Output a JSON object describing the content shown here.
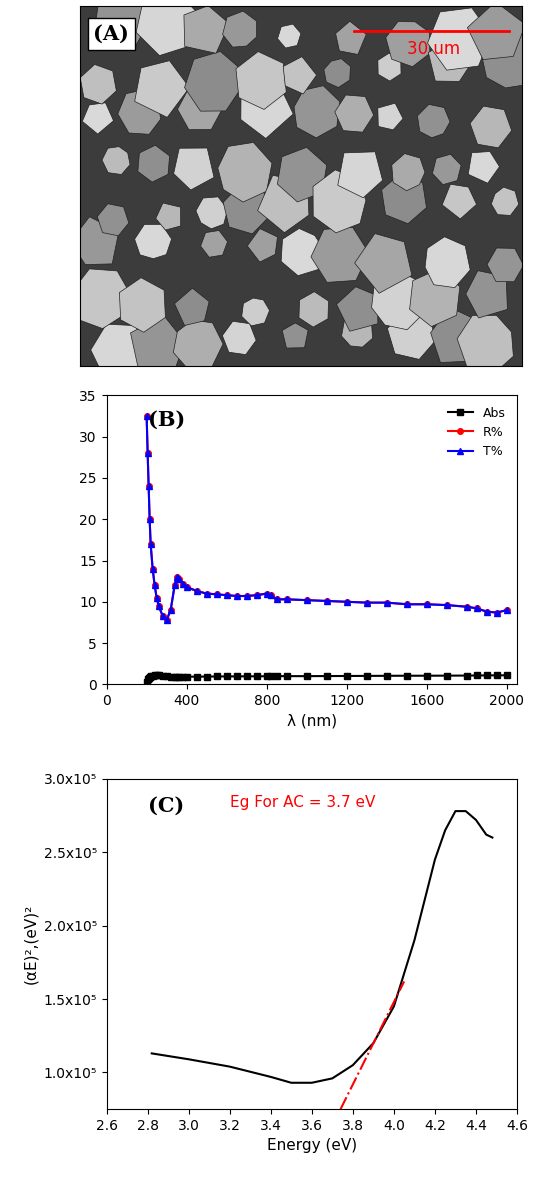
{
  "chart_data": [
    {
      "type": "image",
      "title": "(A)",
      "annotations": [
        "30 um"
      ],
      "tick_labels": false
    },
    {
      "type": "line",
      "title": "(B)",
      "x_label": "λ (nm)",
      "x": [
        200,
        205,
        210,
        215,
        220,
        230,
        240,
        250,
        260,
        280,
        300,
        320,
        340,
        350,
        360,
        380,
        400,
        450,
        500,
        550,
        600,
        650,
        700,
        750,
        800,
        820,
        850,
        900,
        1000,
        1100,
        1200,
        1300,
        1400,
        1500,
        1600,
        1700,
        1800,
        1850,
        1900,
        1950,
        2000
      ],
      "series": [
        {
          "name": "Abs",
          "color": "#000000",
          "marker": "square",
          "line_style": "solid",
          "values": [
            0.3,
            0.6,
            0.8,
            0.9,
            1.0,
            1.05,
            1.1,
            1.1,
            1.1,
            1.05,
            1.0,
            0.95,
            0.9,
            0.9,
            0.9,
            0.92,
            0.93,
            0.94,
            0.95,
            0.96,
            0.97,
            0.97,
            0.98,
            0.98,
            0.99,
            0.99,
            1.0,
            1.0,
            1.0,
            1.01,
            1.02,
            1.03,
            1.04,
            1.05,
            1.05,
            1.06,
            1.07,
            1.08,
            1.09,
            1.1,
            1.1
          ]
        },
        {
          "name": "R%",
          "color": "#ff0000",
          "marker": "circle",
          "line_style": "solid",
          "values": [
            32.5,
            28,
            24,
            20,
            17,
            14,
            12,
            10.5,
            9.5,
            8.3,
            7.8,
            9,
            12,
            13,
            12.8,
            12.2,
            11.8,
            11.3,
            11,
            10.9,
            10.8,
            10.7,
            10.7,
            10.8,
            11,
            10.8,
            10.3,
            10.3,
            10.2,
            10.1,
            10,
            9.9,
            9.9,
            9.7,
            9.7,
            9.6,
            9.4,
            9.2,
            8.8,
            8.7,
            9
          ]
        },
        {
          "name": "T%",
          "color": "#0000ff",
          "marker": "triangle",
          "line_style": "solid",
          "values": [
            32.5,
            28,
            24,
            20,
            17,
            14,
            12,
            10.5,
            9.5,
            8.3,
            7.8,
            9,
            12,
            13,
            12.8,
            12.2,
            11.8,
            11.3,
            11,
            10.9,
            10.8,
            10.7,
            10.7,
            10.8,
            11,
            10.8,
            10.3,
            10.3,
            10.2,
            10.1,
            10,
            9.9,
            9.9,
            9.7,
            9.7,
            9.6,
            9.4,
            9.2,
            8.8,
            8.7,
            9
          ]
        }
      ],
      "xlim": [
        0,
        2050
      ],
      "xticks": [
        0,
        400,
        800,
        1200,
        1600,
        2000
      ],
      "ylim": [
        0,
        35
      ],
      "yticks": [
        0,
        5,
        10,
        15,
        20,
        25,
        30,
        35
      ],
      "legend": "upper right"
    },
    {
      "type": "line",
      "title": "(C)",
      "x_label": "Energy (eV)",
      "y_label": "(αE)²,(eV)²",
      "annotations": [
        "Eg For AC = 3.7 eV"
      ],
      "series": [
        {
          "color": "#000000",
          "line_style": "solid",
          "x": [
            2.82,
            3.0,
            3.2,
            3.4,
            3.5,
            3.6,
            3.7,
            3.8,
            3.9,
            4.0,
            4.1,
            4.2,
            4.25,
            4.3,
            4.35,
            4.4,
            4.45,
            4.48
          ],
          "values": [
            113000,
            109000,
            104000,
            97000,
            93000,
            93000,
            96000,
            105000,
            120000,
            145000,
            190000,
            245000,
            265000,
            278000,
            278000,
            272000,
            262000,
            260000
          ]
        },
        {
          "color": "#ff0000",
          "line_style": "dashdot",
          "x": [
            3.74,
            4.05
          ],
          "values": [
            75000,
            162000
          ]
        }
      ],
      "xlim": [
        2.6,
        4.6
      ],
      "xticks": [
        2.6,
        2.8,
        3.0,
        3.2,
        3.4,
        3.6,
        3.8,
        4.0,
        4.2,
        4.4,
        4.6
      ],
      "ylim": [
        75000,
        300000
      ],
      "yticks": [
        {
          "value": 100000,
          "label": "1.0x10⁵"
        },
        {
          "value": 150000,
          "label": "1.5x10⁵"
        },
        {
          "value": 200000,
          "label": "2.0x10⁵"
        },
        {
          "value": 250000,
          "label": "2.5x10⁵"
        },
        {
          "value": 300000,
          "label": "3.0x10⁵"
        }
      ]
    }
  ]
}
